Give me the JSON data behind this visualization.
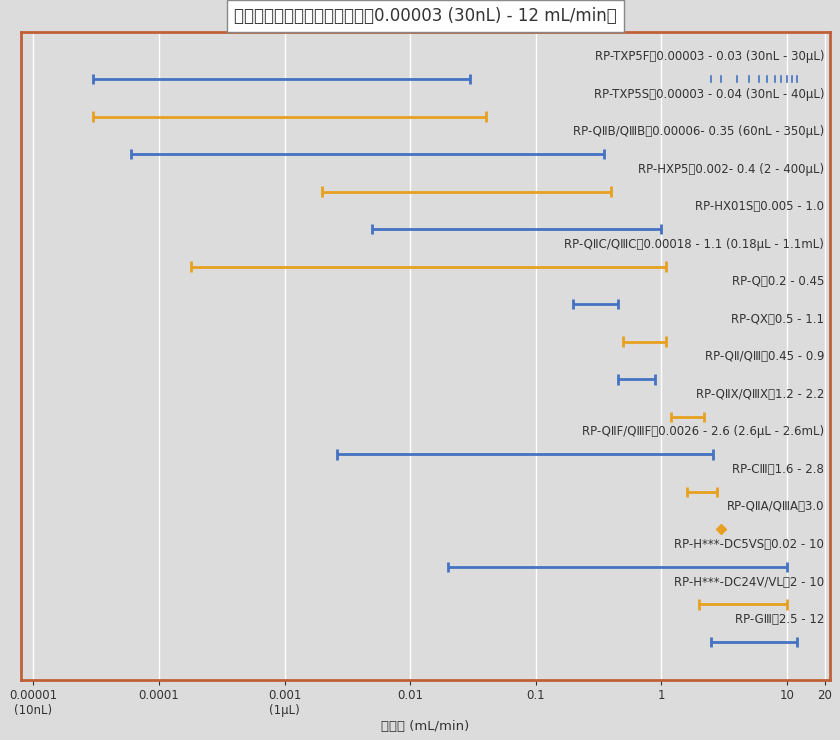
{
  "title": "標準機種ポンプの吐出量範囲（0.00003 (30nL) - 12 mL/min）",
  "xlabel": "吐出量 (mL/min)",
  "xlim": [
    8e-06,
    22
  ],
  "series": [
    {
      "label": "RP-GⅢ：2.5 - 12",
      "xmin": 2.5,
      "xmax": 12.0,
      "color": "#4472C4",
      "y": 15,
      "point_only": false
    },
    {
      "label": "RP-H***-DC24V/VL：2 - 10",
      "xmin": 2.0,
      "xmax": 10.0,
      "color": "#E8A020",
      "y": 14,
      "point_only": false
    },
    {
      "label": "RP-H***-DC5VS：0.02 - 10",
      "xmin": 0.02,
      "xmax": 10.0,
      "color": "#4472C4",
      "y": 13,
      "point_only": false
    },
    {
      "label": "RP-QⅡA/QⅢA：3.0",
      "xmin": 3.0,
      "xmax": 3.0,
      "color": "#E8A020",
      "y": 12,
      "point_only": true
    },
    {
      "label": "RP-CⅢ：1.6 - 2.8",
      "xmin": 1.6,
      "xmax": 2.8,
      "color": "#E8A020",
      "y": 11,
      "point_only": false
    },
    {
      "label": "RP-QⅡF/QⅢF：0.0026 - 2.6 (2.6μL - 2.6mL)",
      "xmin": 0.0026,
      "xmax": 2.6,
      "color": "#4472C4",
      "y": 10,
      "point_only": false
    },
    {
      "label": "RP-QⅡX/QⅢX：1.2 - 2.2",
      "xmin": 1.2,
      "xmax": 2.2,
      "color": "#E8A020",
      "y": 9,
      "point_only": false
    },
    {
      "label": "RP-QⅡ/QⅢ：0.45 - 0.9",
      "xmin": 0.45,
      "xmax": 0.9,
      "color": "#4472C4",
      "y": 8,
      "point_only": false
    },
    {
      "label": "RP-QX：0.5 - 1.1",
      "xmin": 0.5,
      "xmax": 1.1,
      "color": "#E8A020",
      "y": 7,
      "point_only": false
    },
    {
      "label": "RP-Q：0.2 - 0.45",
      "xmin": 0.2,
      "xmax": 0.45,
      "color": "#4472C4",
      "y": 6,
      "point_only": false
    },
    {
      "label": "RP-QⅡC/QⅢC：0.00018 - 1.1 (0.18μL - 1.1mL)",
      "xmin": 0.00018,
      "xmax": 1.1,
      "color": "#E8A020",
      "y": 5,
      "point_only": false
    },
    {
      "label": "RP-HX01S：0.005 - 1.0",
      "xmin": 0.005,
      "xmax": 1.0,
      "color": "#4472C4",
      "y": 4,
      "point_only": false
    },
    {
      "label": "RP-HXP5：0.002- 0.4 (2 - 400μL)",
      "xmin": 0.002,
      "xmax": 0.4,
      "color": "#E8A020",
      "y": 3,
      "point_only": false
    },
    {
      "label": "RP-QⅡB/QⅢB：0.00006- 0.35 (60nL - 350μL)",
      "xmin": 6e-05,
      "xmax": 0.35,
      "color": "#4472C4",
      "y": 2,
      "point_only": false
    },
    {
      "label": "RP-TXP5S：0.00003 - 0.04 (30nL - 40μL)",
      "xmin": 3e-05,
      "xmax": 0.04,
      "color": "#E8A020",
      "y": 1,
      "point_only": false
    },
    {
      "label": "RP-TXP5F：0.00003 - 0.03 (30nL - 30μL)",
      "xmin": 3e-05,
      "xmax": 0.03,
      "color": "#4472C4",
      "y": 0,
      "point_only": false
    }
  ],
  "bg_color": "#DCDCDC",
  "plot_bg": "#DCDCDC",
  "border_color": "#C0603A",
  "grid_color": "#FFFFFF",
  "text_color": "#333333",
  "title_fontsize": 12,
  "label_fontsize": 8.5,
  "tick_fontsize": 8.5,
  "giii_ticks": [
    2.5,
    3,
    4,
    5,
    6,
    7,
    8,
    9,
    10,
    11,
    12
  ]
}
